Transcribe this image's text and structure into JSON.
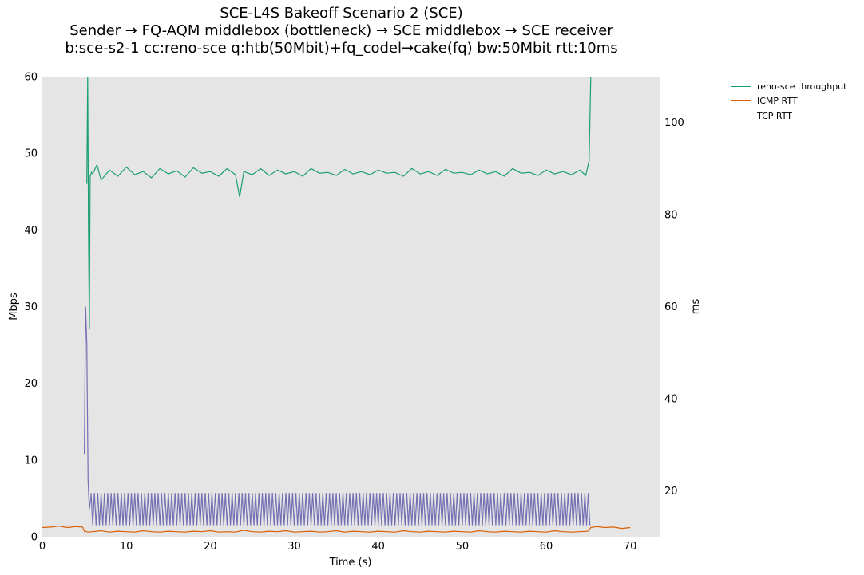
{
  "chart_data": {
    "type": "line",
    "title": [
      "SCE-L4S Bakeoff Scenario 2 (SCE)",
      "Sender → FQ-AQM middlebox (bottleneck) → SCE middlebox → SCE receiver",
      "b:sce-s2-1 cc:reno-sce q:htb(50Mbit)+fq_codel→cake(fq) bw:50Mbit rtt:10ms"
    ],
    "xlabel": "Time (s)",
    "ylabel": "Mbps",
    "ylabel_right": "ms",
    "xlim": [
      0,
      73.5
    ],
    "ylim": [
      0,
      60
    ],
    "ylim_right": [
      10,
      110
    ],
    "xticks": [
      0,
      10,
      20,
      30,
      40,
      50,
      60,
      70
    ],
    "yticks": [
      0,
      10,
      20,
      30,
      40,
      50,
      60
    ],
    "yticks_right": [
      20,
      40,
      60,
      80,
      100
    ],
    "grid": false,
    "legend_position": "outside-right",
    "series": [
      {
        "name": "reno-sce throughput",
        "axis": "left",
        "color": "#1b9e77",
        "x": [
          5.3,
          5.4,
          5.5,
          5.6,
          5.7,
          5.85,
          6.0,
          6.5,
          7.0,
          8.0,
          9.0,
          10.0,
          11.0,
          12.0,
          13.0,
          14.0,
          15.0,
          16.0,
          17.0,
          18.0,
          19.0,
          20.0,
          21.0,
          22.0,
          23.0,
          23.5,
          24.0,
          25.0,
          26.0,
          27.0,
          28.0,
          29.0,
          30.0,
          31.0,
          32.0,
          33.0,
          34.0,
          35.0,
          36.0,
          37.0,
          38.0,
          39.0,
          40.0,
          41.0,
          42.0,
          43.0,
          44.0,
          45.0,
          46.0,
          47.0,
          48.0,
          49.0,
          50.0,
          51.0,
          52.0,
          53.0,
          54.0,
          55.0,
          56.0,
          57.0,
          58.0,
          59.0,
          60.0,
          61.0,
          62.0,
          63.0,
          64.0,
          64.7,
          65.1,
          65.3
        ],
        "values": [
          46.0,
          65.0,
          40.0,
          27.0,
          47.0,
          47.5,
          47.3,
          48.5,
          46.5,
          47.8,
          47.0,
          48.2,
          47.2,
          47.6,
          46.8,
          48.0,
          47.3,
          47.7,
          46.9,
          48.1,
          47.4,
          47.6,
          47.0,
          48.0,
          47.2,
          44.3,
          47.6,
          47.2,
          48.0,
          47.1,
          47.8,
          47.3,
          47.6,
          47.0,
          48.0,
          47.4,
          47.5,
          47.1,
          47.9,
          47.3,
          47.6,
          47.2,
          47.8,
          47.4,
          47.5,
          47.0,
          48.0,
          47.3,
          47.6,
          47.1,
          47.9,
          47.4,
          47.5,
          47.2,
          47.8,
          47.3,
          47.6,
          47.0,
          48.0,
          47.4,
          47.5,
          47.1,
          47.8,
          47.3,
          47.6,
          47.2,
          47.8,
          47.1,
          49.0,
          65.0
        ]
      },
      {
        "name": "ICMP RTT",
        "axis": "right",
        "color": "#d95f02",
        "x": [
          0,
          1,
          2,
          3,
          4,
          4.8,
          5.0,
          5.5,
          6,
          7,
          8,
          9,
          10,
          11,
          12,
          13,
          14,
          15,
          16,
          17,
          18,
          19,
          20,
          21,
          22,
          23,
          24,
          25,
          26,
          27,
          28,
          29,
          30,
          31,
          32,
          33,
          34,
          35,
          36,
          37,
          38,
          39,
          40,
          41,
          42,
          43,
          44,
          45,
          46,
          47,
          48,
          49,
          50,
          51,
          52,
          53,
          54,
          55,
          56,
          57,
          58,
          59,
          60,
          61,
          62,
          63,
          64,
          65,
          65.3,
          66,
          67,
          68,
          69,
          70
        ],
        "values": [
          12.0,
          12.1,
          12.3,
          12.0,
          12.2,
          12.1,
          11.2,
          11.0,
          11.1,
          11.3,
          11.0,
          11.2,
          11.1,
          11.0,
          11.3,
          11.1,
          11.0,
          11.2,
          11.1,
          11.0,
          11.2,
          11.1,
          11.3,
          11.0,
          11.1,
          11.0,
          11.4,
          11.1,
          11.0,
          11.2,
          11.1,
          11.3,
          11.0,
          11.1,
          11.2,
          11.0,
          11.1,
          11.3,
          11.0,
          11.2,
          11.1,
          11.0,
          11.2,
          11.1,
          11.0,
          11.3,
          11.1,
          11.0,
          11.2,
          11.1,
          11.0,
          11.2,
          11.1,
          11.0,
          11.3,
          11.1,
          11.0,
          11.2,
          11.1,
          11.0,
          11.2,
          11.1,
          11.0,
          11.3,
          11.1,
          11.0,
          11.1,
          11.2,
          12.0,
          12.2,
          12.0,
          12.1,
          11.8,
          12.0
        ]
      },
      {
        "name": "TCP RTT",
        "axis": "right",
        "color": "#7570b3",
        "x": [
          5.0,
          5.15,
          5.3,
          5.45,
          5.6,
          5.8
        ],
        "values": [
          28.0,
          60.0,
          52.0,
          22.0,
          16.0,
          19.0
        ],
        "oscillation": {
          "x_start": 5.8,
          "x_end": 65.3,
          "period": 0.4,
          "low": 12.5,
          "high": 19.5,
          "values": [
            19.5,
            12.5
          ]
        }
      }
    ]
  }
}
